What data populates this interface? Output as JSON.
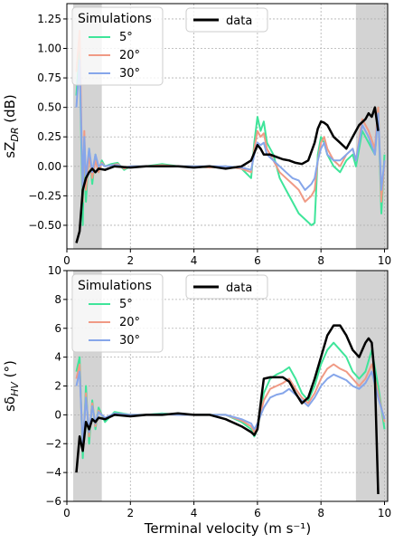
{
  "figure": {
    "xlabel": "Terminal velocity (m s⁻¹)"
  },
  "colors": {
    "5": "#3fe59a",
    "20": "#f09a85",
    "30": "#86a6ea",
    "data": "#000000",
    "shade": "#d3d3d3"
  },
  "legend": {
    "title": "Simulations",
    "entries": [
      "5°",
      "20°",
      "30°"
    ],
    "data_label": "data"
  },
  "chart_data": [
    {
      "type": "line",
      "title": "",
      "xlabel": "",
      "ylabel": "sZDR (dB)",
      "ylabel_main": "sZ",
      "ylabel_sub": "DR",
      "ylabel_unit": " (dB)",
      "xlim": [
        0,
        10.1
      ],
      "ylim": [
        -0.7,
        1.38
      ],
      "xticks": [
        0,
        2,
        4,
        6,
        8,
        10
      ],
      "yticks": [
        -0.5,
        -0.25,
        0.0,
        0.25,
        0.5,
        0.75,
        1.0,
        1.25
      ],
      "ytick_labels": [
        "−0.50",
        "−0.25",
        "0.00",
        "0.25",
        "0.50",
        "0.75",
        "1.00",
        "1.25"
      ],
      "grid": true,
      "legend_position": "top",
      "shaded_x": [
        [
          0.2,
          1.1
        ],
        [
          9.1,
          10.1
        ]
      ],
      "series": [
        {
          "key": "5",
          "x": [
            0.3,
            0.4,
            0.5,
            0.55,
            0.6,
            0.7,
            0.8,
            0.9,
            1.0,
            1.1,
            1.2,
            1.4,
            1.6,
            1.8,
            2,
            2.5,
            3,
            3.5,
            4,
            4.5,
            5,
            5.5,
            5.8,
            5.9,
            6.0,
            6.1,
            6.2,
            6.3,
            6.5,
            6.7,
            6.9,
            7.1,
            7.3,
            7.5,
            7.7,
            7.8,
            7.9,
            8.0,
            8.1,
            8.2,
            8.4,
            8.6,
            8.8,
            9.0,
            9.1,
            9.3,
            9.5,
            9.7,
            9.8,
            9.9,
            10.0
          ],
          "y": [
            0.6,
            1.0,
            -0.5,
            0.2,
            -0.3,
            0.15,
            -0.15,
            0.1,
            -0.05,
            0.05,
            0.0,
            0.02,
            0.03,
            -0.03,
            0.0,
            0.0,
            0.02,
            0.0,
            0.0,
            -0.01,
            0.0,
            -0.02,
            -0.1,
            0.2,
            0.42,
            0.3,
            0.38,
            0.2,
            0.1,
            -0.1,
            -0.2,
            -0.3,
            -0.4,
            -0.45,
            -0.5,
            -0.48,
            0.1,
            0.25,
            0.2,
            0.1,
            0.0,
            -0.05,
            0.05,
            0.1,
            0.0,
            0.3,
            0.2,
            0.1,
            0.5,
            -0.4,
            0.1
          ]
        },
        {
          "key": "20",
          "x": [
            0.3,
            0.4,
            0.5,
            0.55,
            0.6,
            0.7,
            0.8,
            0.9,
            1.0,
            1.1,
            1.2,
            1.4,
            1.6,
            1.8,
            2,
            2.5,
            3,
            3.5,
            4,
            4.5,
            5,
            5.5,
            5.8,
            5.9,
            6.0,
            6.1,
            6.2,
            6.3,
            6.5,
            6.7,
            6.9,
            7.1,
            7.3,
            7.5,
            7.7,
            7.8,
            7.9,
            8.0,
            8.1,
            8.2,
            8.4,
            8.6,
            8.8,
            9.0,
            9.1,
            9.3,
            9.5,
            9.7,
            9.8,
            9.9,
            10.0
          ],
          "y": [
            0.8,
            1.15,
            -0.3,
            0.3,
            -0.2,
            0.1,
            -0.1,
            0.05,
            -0.05,
            0.03,
            0.0,
            0.01,
            0.02,
            -0.02,
            0.0,
            0.0,
            0.01,
            0.0,
            0.0,
            -0.01,
            0.0,
            -0.02,
            -0.05,
            0.15,
            0.3,
            0.25,
            0.28,
            0.15,
            0.05,
            -0.05,
            -0.1,
            -0.15,
            -0.2,
            -0.3,
            -0.25,
            -0.2,
            0.05,
            0.2,
            0.25,
            0.15,
            0.05,
            0.0,
            0.1,
            0.15,
            0.05,
            0.4,
            0.3,
            0.15,
            0.5,
            -0.3,
            0.05
          ]
        },
        {
          "key": "30",
          "x": [
            0.3,
            0.4,
            0.5,
            0.55,
            0.6,
            0.7,
            0.8,
            0.9,
            1.0,
            1.1,
            1.2,
            1.4,
            1.6,
            1.8,
            2,
            2.5,
            3,
            3.5,
            4,
            4.5,
            5,
            5.5,
            5.8,
            5.9,
            6.0,
            6.1,
            6.2,
            6.3,
            6.5,
            6.7,
            6.9,
            7.1,
            7.3,
            7.5,
            7.7,
            7.8,
            7.9,
            8.0,
            8.1,
            8.2,
            8.4,
            8.6,
            8.8,
            9.0,
            9.1,
            9.3,
            9.5,
            9.7,
            9.8,
            9.9,
            10.0
          ],
          "y": [
            0.5,
            0.9,
            -0.2,
            0.25,
            -0.1,
            0.15,
            -0.05,
            0.1,
            0.0,
            0.02,
            0.0,
            0.01,
            0.01,
            -0.01,
            0.0,
            0.0,
            0.0,
            0.0,
            0.0,
            0.0,
            0.0,
            -0.01,
            -0.03,
            0.1,
            0.2,
            0.18,
            0.2,
            0.1,
            0.05,
            0.0,
            -0.05,
            -0.1,
            -0.12,
            -0.2,
            -0.15,
            -0.1,
            0.05,
            0.15,
            0.2,
            0.1,
            0.05,
            0.05,
            0.1,
            0.15,
            0.05,
            0.35,
            0.25,
            0.1,
            0.45,
            -0.2,
            0.05
          ]
        },
        {
          "key": "data",
          "x": [
            0.3,
            0.4,
            0.5,
            0.6,
            0.7,
            0.8,
            0.9,
            1.0,
            1.2,
            1.5,
            2.0,
            2.5,
            3.0,
            3.5,
            4.0,
            4.5,
            5.0,
            5.5,
            5.8,
            6.0,
            6.1,
            6.2,
            6.4,
            6.6,
            6.8,
            7.0,
            7.2,
            7.4,
            7.6,
            7.8,
            7.9,
            8.0,
            8.1,
            8.2,
            8.4,
            8.6,
            8.8,
            9.0,
            9.2,
            9.4,
            9.5,
            9.6,
            9.7,
            9.8
          ],
          "y": [
            -0.65,
            -0.55,
            -0.2,
            -0.1,
            -0.05,
            -0.02,
            -0.05,
            -0.02,
            -0.03,
            0.0,
            -0.01,
            0.0,
            0.0,
            0.0,
            -0.01,
            0.0,
            -0.02,
            0.0,
            0.05,
            0.18,
            0.15,
            0.1,
            0.1,
            0.08,
            0.06,
            0.05,
            0.03,
            0.02,
            0.05,
            0.2,
            0.32,
            0.38,
            0.37,
            0.35,
            0.25,
            0.2,
            0.15,
            0.25,
            0.35,
            0.4,
            0.45,
            0.42,
            0.5,
            0.3
          ]
        }
      ]
    },
    {
      "type": "line",
      "title": "",
      "xlabel": "Terminal velocity (m s⁻¹)",
      "ylabel": "sδHV (°)",
      "ylabel_main": "sδ",
      "ylabel_sub": "HV",
      "ylabel_unit": " (°)",
      "xlim": [
        0,
        10.1
      ],
      "ylim": [
        -6,
        10
      ],
      "xticks": [
        0,
        2,
        4,
        6,
        8,
        10
      ],
      "yticks": [
        -6,
        -4,
        -2,
        0,
        2,
        4,
        6,
        8,
        10
      ],
      "ytick_labels": [
        "−6",
        "−4",
        "−2",
        "0",
        "2",
        "4",
        "6",
        "8",
        "10"
      ],
      "grid": true,
      "legend_position": "top",
      "shaded_x": [
        [
          0.2,
          1.1
        ],
        [
          9.1,
          10.1
        ]
      ],
      "series": [
        {
          "key": "5",
          "x": [
            0.3,
            0.4,
            0.5,
            0.6,
            0.7,
            0.8,
            0.9,
            1.0,
            1.2,
            1.5,
            2.0,
            2.5,
            3,
            3.5,
            4,
            4.5,
            5,
            5.5,
            5.8,
            5.9,
            6.0,
            6.2,
            6.4,
            6.6,
            6.8,
            7.0,
            7.2,
            7.4,
            7.6,
            7.8,
            8.0,
            8.2,
            8.4,
            8.6,
            8.8,
            9.0,
            9.2,
            9.4,
            9.6,
            9.8,
            10.0
          ],
          "y": [
            3,
            4,
            -3,
            2,
            -2,
            1,
            -1,
            0.5,
            -0.5,
            0.2,
            0.0,
            0.0,
            0.1,
            0.0,
            0.0,
            0.0,
            0.0,
            -0.5,
            -1.0,
            -1.5,
            -1.0,
            1.5,
            2.5,
            2.8,
            3.0,
            3.3,
            2.5,
            1.5,
            1.0,
            2.0,
            3.5,
            4.5,
            5.0,
            4.5,
            4.0,
            3.0,
            2.5,
            3.0,
            4.5,
            2.0,
            -1.0
          ]
        },
        {
          "key": "20",
          "x": [
            0.3,
            0.4,
            0.5,
            0.6,
            0.7,
            0.8,
            0.9,
            1.0,
            1.2,
            1.5,
            2.0,
            2.5,
            3,
            3.5,
            4,
            4.5,
            5,
            5.5,
            5.8,
            5.9,
            6.0,
            6.2,
            6.4,
            6.6,
            6.8,
            7.0,
            7.2,
            7.4,
            7.6,
            7.8,
            8.0,
            8.2,
            8.4,
            8.6,
            8.8,
            9.0,
            9.2,
            9.4,
            9.6,
            9.8,
            10.0
          ],
          "y": [
            2.5,
            3.5,
            -2.5,
            1.5,
            -1.5,
            0.8,
            -0.8,
            0.3,
            -0.3,
            0.1,
            0.0,
            0.0,
            0.05,
            0.0,
            0.0,
            0.0,
            0.0,
            -0.4,
            -0.8,
            -1.2,
            -0.8,
            1.0,
            1.8,
            2.0,
            2.2,
            2.5,
            1.8,
            1.2,
            0.8,
            1.5,
            2.5,
            3.2,
            3.5,
            3.2,
            3.0,
            2.5,
            2.0,
            2.5,
            3.5,
            1.5,
            -0.5
          ]
        },
        {
          "key": "30",
          "x": [
            0.3,
            0.4,
            0.5,
            0.6,
            0.7,
            0.8,
            0.9,
            1.0,
            1.2,
            1.5,
            2.0,
            2.5,
            3,
            3.5,
            4,
            4.5,
            5,
            5.5,
            5.8,
            5.9,
            6.0,
            6.2,
            6.4,
            6.6,
            6.8,
            7.0,
            7.2,
            7.4,
            7.6,
            7.8,
            8.0,
            8.2,
            8.4,
            8.6,
            8.8,
            9.0,
            9.2,
            9.4,
            9.6,
            9.8,
            10.0
          ],
          "y": [
            2,
            3,
            -2,
            1.2,
            -1.2,
            0.6,
            -0.6,
            0.2,
            -0.2,
            0.1,
            0.0,
            0.0,
            0.05,
            0.0,
            0.0,
            0.0,
            0.0,
            -0.3,
            -0.6,
            -1.0,
            -0.6,
            0.5,
            1.2,
            1.4,
            1.5,
            1.8,
            1.4,
            1.0,
            0.6,
            1.2,
            2.0,
            2.5,
            2.8,
            2.6,
            2.4,
            2.0,
            1.8,
            2.2,
            3.0,
            1.2,
            -0.3
          ]
        },
        {
          "key": "data",
          "x": [
            0.3,
            0.4,
            0.5,
            0.6,
            0.7,
            0.8,
            0.9,
            1.0,
            1.2,
            1.5,
            2.0,
            2.5,
            3.0,
            3.5,
            4.0,
            4.5,
            5.0,
            5.5,
            5.8,
            5.9,
            6.0,
            6.2,
            6.4,
            6.8,
            7.0,
            7.2,
            7.4,
            7.6,
            7.8,
            8.0,
            8.2,
            8.4,
            8.6,
            8.8,
            9.0,
            9.2,
            9.4,
            9.5,
            9.6,
            9.7,
            9.8
          ],
          "y": [
            -4,
            -1.5,
            -2.5,
            -0.5,
            -1.0,
            -0.3,
            -0.5,
            -0.2,
            -0.3,
            0.0,
            -0.1,
            0.0,
            0.0,
            0.1,
            0.0,
            0.0,
            -0.3,
            -0.8,
            -1.2,
            -1.4,
            -1.0,
            2.5,
            2.6,
            2.6,
            2.3,
            1.5,
            0.8,
            1.2,
            2.5,
            4.0,
            5.5,
            6.2,
            6.2,
            5.5,
            4.5,
            4.0,
            5.0,
            5.3,
            5.0,
            2.5,
            -5.5
          ]
        }
      ]
    }
  ]
}
